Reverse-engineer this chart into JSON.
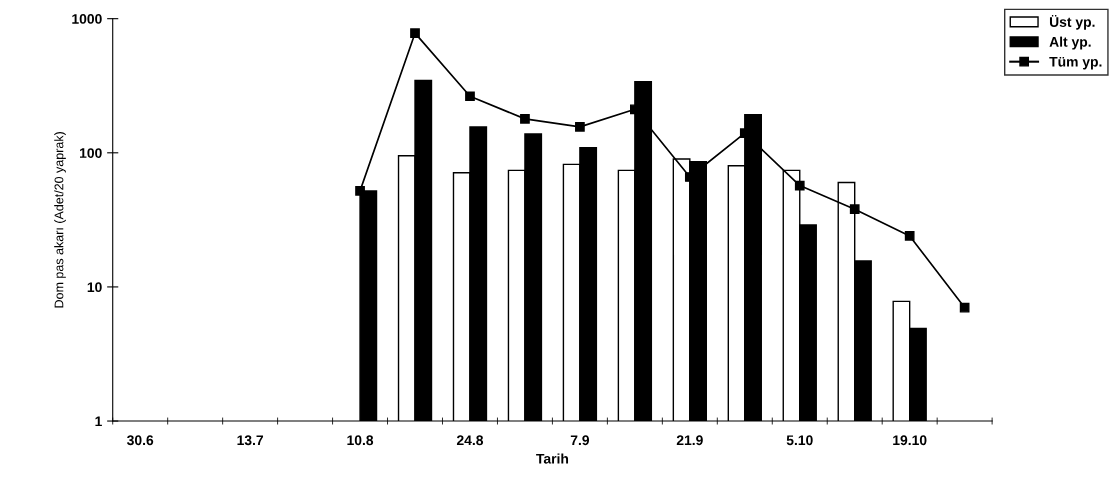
{
  "chart_data": {
    "type": "bar",
    "xlabel": "Tarih",
    "ylabel": "Dom pas akarı (Adet/20 yaprak)",
    "categories": [
      "30.6",
      null,
      "13.7",
      null,
      "10.8",
      null,
      "24.8",
      null,
      "7.9",
      null,
      "21.9",
      null,
      "5.10",
      null,
      "19.10",
      null
    ],
    "series": [
      {
        "name": "Üst yp.",
        "color": "#ffffff",
        "values": [
          null,
          null,
          null,
          null,
          null,
          95,
          71,
          74,
          82,
          74,
          90,
          80,
          74,
          60,
          7.8,
          null
        ]
      },
      {
        "name": "Alt yp.",
        "color": "#000000",
        "values": [
          null,
          null,
          null,
          null,
          52,
          347,
          156,
          138,
          109,
          339,
          86,
          192,
          29,
          15.6,
          4.9,
          null
        ]
      },
      {
        "name": "Tüm yp.",
        "type": "line",
        "color": "#000000",
        "marker": "square",
        "values": [
          null,
          null,
          null,
          null,
          52,
          780,
          264,
          179,
          156,
          211,
          66,
          140,
          57,
          38,
          24,
          7.0
        ]
      }
    ],
    "log": "y",
    "ylim": [
      1,
      1000
    ],
    "yticks": [
      1,
      10,
      100,
      1000
    ],
    "grid": false,
    "legend": "top right"
  }
}
